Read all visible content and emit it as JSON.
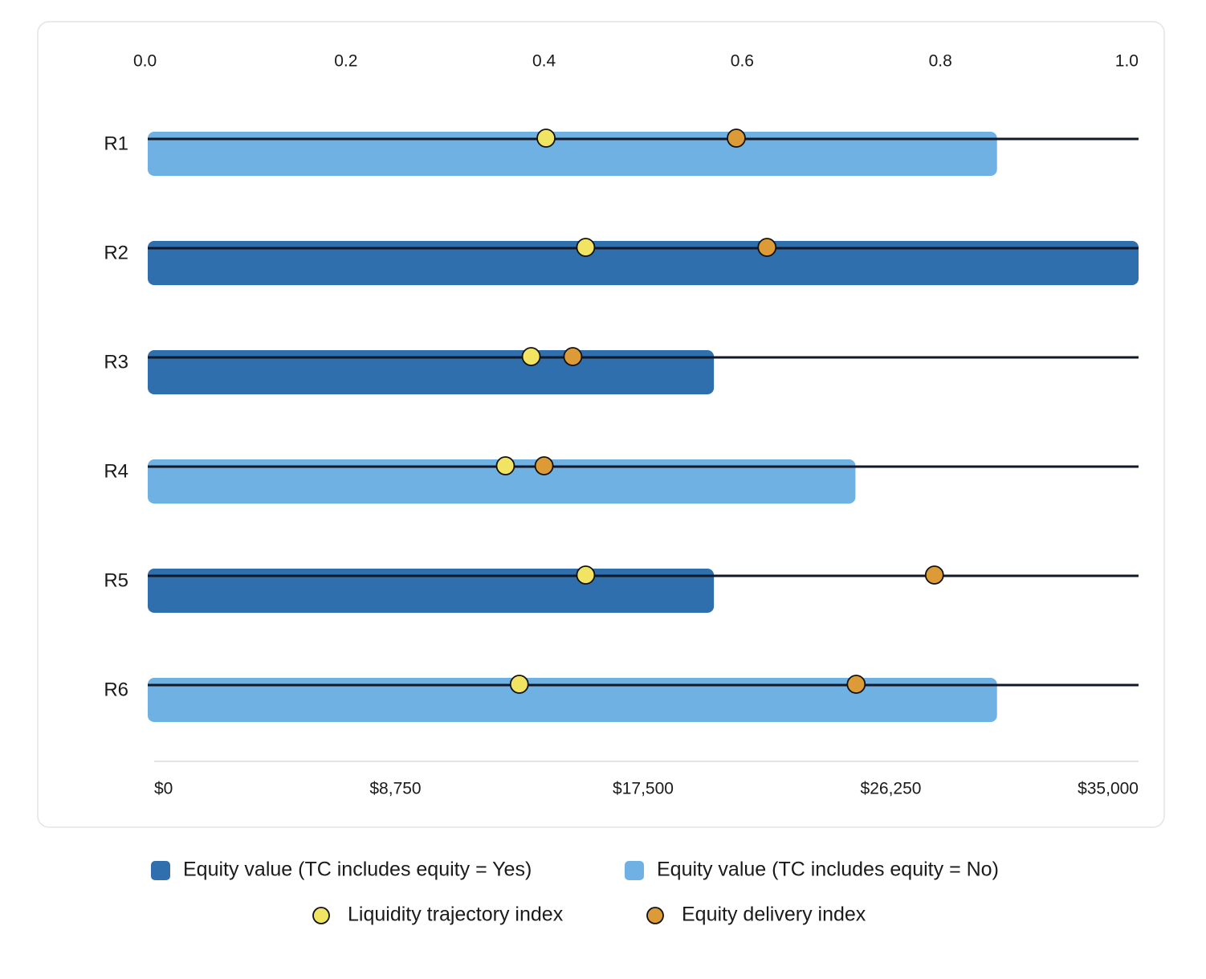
{
  "chart_data": {
    "type": "bar",
    "orientation": "horizontal",
    "categories": [
      "R1",
      "R2",
      "R3",
      "R4",
      "R5",
      "R6"
    ],
    "xlim": [
      0,
      35000
    ],
    "xticks": [
      {
        "value": 0,
        "label": "$0"
      },
      {
        "value": 8750,
        "label": "$8,750"
      },
      {
        "value": 17500,
        "label": "$17,500"
      },
      {
        "value": 26250,
        "label": "$26,250"
      },
      {
        "value": 35000,
        "label": "$35,000"
      }
    ],
    "x2lim": [
      0,
      1
    ],
    "x2ticks": [
      {
        "value": 0,
        "label": "0.0"
      },
      {
        "value": 0.2,
        "label": "0.2"
      },
      {
        "value": 0.4,
        "label": "0.4"
      },
      {
        "value": 0.6,
        "label": "0.6"
      },
      {
        "value": 0.8,
        "label": "0.8"
      },
      {
        "value": 1,
        "label": "1.0"
      }
    ],
    "series": [
      {
        "name": "Equity value (TC includes equity = Yes)",
        "color": "#2f6fad",
        "kind": "bar",
        "values": [
          null,
          35000,
          20000,
          null,
          20000,
          null
        ]
      },
      {
        "name": "Equity value (TC includes equity = No)",
        "color": "#6eb1e2",
        "kind": "bar",
        "values": [
          30000,
          null,
          null,
          25000,
          null,
          30000
        ]
      },
      {
        "name": "Liquidity trajectory index",
        "color": "#f0e462",
        "kind": "dot",
        "axis": "x2",
        "values": [
          0.402,
          0.442,
          0.387,
          0.361,
          0.442,
          0.375
        ]
      },
      {
        "name": "Equity delivery index",
        "color": "#dc9b36",
        "kind": "dot",
        "axis": "x2",
        "values": [
          0.594,
          0.625,
          0.429,
          0.4,
          0.794,
          0.715
        ]
      }
    ]
  }
}
